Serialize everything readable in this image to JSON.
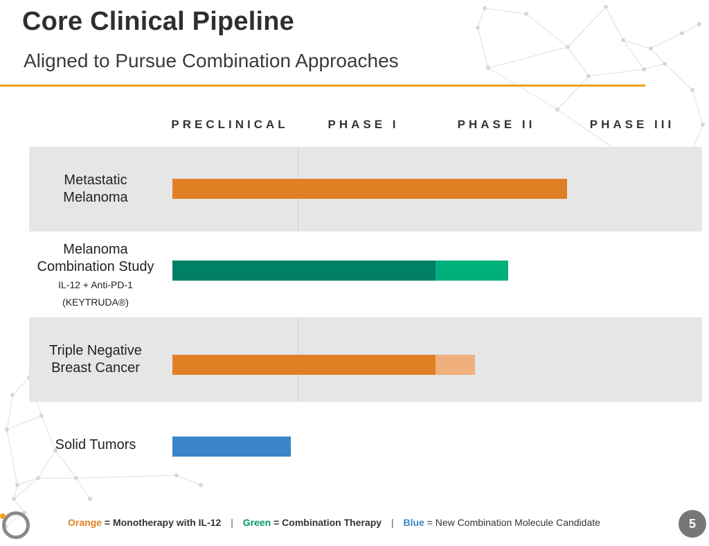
{
  "slide": {
    "title": "Core Clinical Pipeline",
    "subtitle": "Aligned to Pursue Combination Approaches",
    "page_number": "5"
  },
  "colors": {
    "accent": "#f0a020",
    "orange": "#e08024",
    "orange_light": "#f0b07e",
    "green_dark": "#008066",
    "green": "#00b07a",
    "blue": "#3a86c8",
    "band": "#e6e6e6"
  },
  "legend": {
    "orange_word": "Orange",
    "orange_desc": " = Monotherapy with IL-12",
    "green_word": "Green",
    "green_desc": " = Combination Therapy",
    "blue_word": "Blue",
    "blue_desc": " = New Combination Molecule Candidate",
    "separator": "|"
  },
  "chart_data": {
    "type": "bar",
    "orientation": "horizontal",
    "stages": [
      "PRECLINICAL",
      "PHASE I",
      "PHASE II",
      "PHASE III"
    ],
    "rows": [
      {
        "label_main": "Metastatic Melanoma",
        "label_small": "",
        "segments": [
          {
            "start": 0,
            "end": 3.0,
            "color": "orange"
          }
        ]
      },
      {
        "label_main": "Melanoma Combination Study",
        "label_small": "IL-12 + Anti-PD-1 (KEYTRUDA®)",
        "segments": [
          {
            "start": 0,
            "end": 2.0,
            "color": "green_dark"
          },
          {
            "start": 2.0,
            "end": 2.55,
            "color": "green"
          }
        ]
      },
      {
        "label_main": "Triple Negative Breast Cancer",
        "label_small": "",
        "segments": [
          {
            "start": 0,
            "end": 2.0,
            "color": "orange"
          },
          {
            "start": 2.0,
            "end": 2.3,
            "color": "orange_light"
          }
        ]
      },
      {
        "label_main": "Solid Tumors",
        "label_small": "",
        "segments": [
          {
            "start": 0,
            "end": 0.9,
            "color": "blue"
          }
        ]
      }
    ]
  }
}
